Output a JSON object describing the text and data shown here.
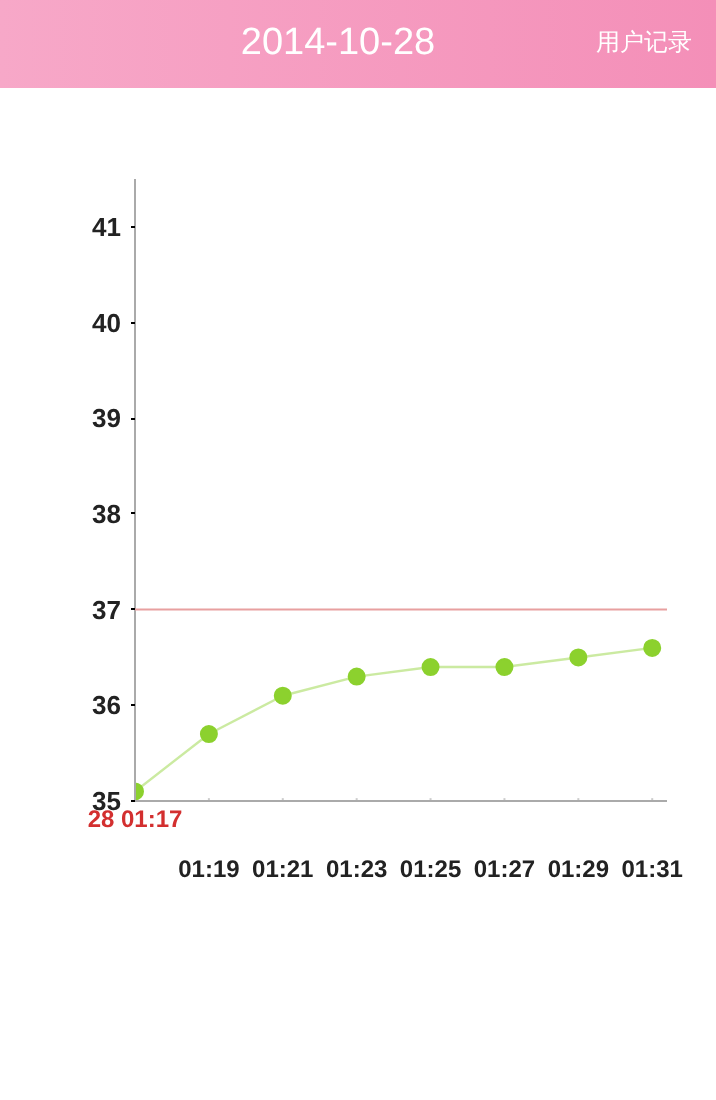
{
  "chart_data": {
    "type": "line",
    "title": "2014-10-28",
    "annotations": [
      "用户记录"
    ],
    "categories": [
      "28 01:17",
      "01:19",
      "01:21",
      "01:23",
      "01:25",
      "01:27",
      "01:29",
      "01:31"
    ],
    "series": [
      {
        "color": "#8cd12e",
        "values": [
          35.1,
          35.7,
          36.1,
          36.3,
          36.4,
          36.4,
          36.5,
          36.6
        ]
      }
    ],
    "ylim": [
      35,
      41.5
    ],
    "yticks": [
      35,
      36,
      37,
      38,
      39,
      40,
      41
    ],
    "ref_lines": [
      {
        "axis": "y",
        "value": 37,
        "color": "#e8a0a0"
      }
    ],
    "marker": "circle",
    "grid": false
  }
}
